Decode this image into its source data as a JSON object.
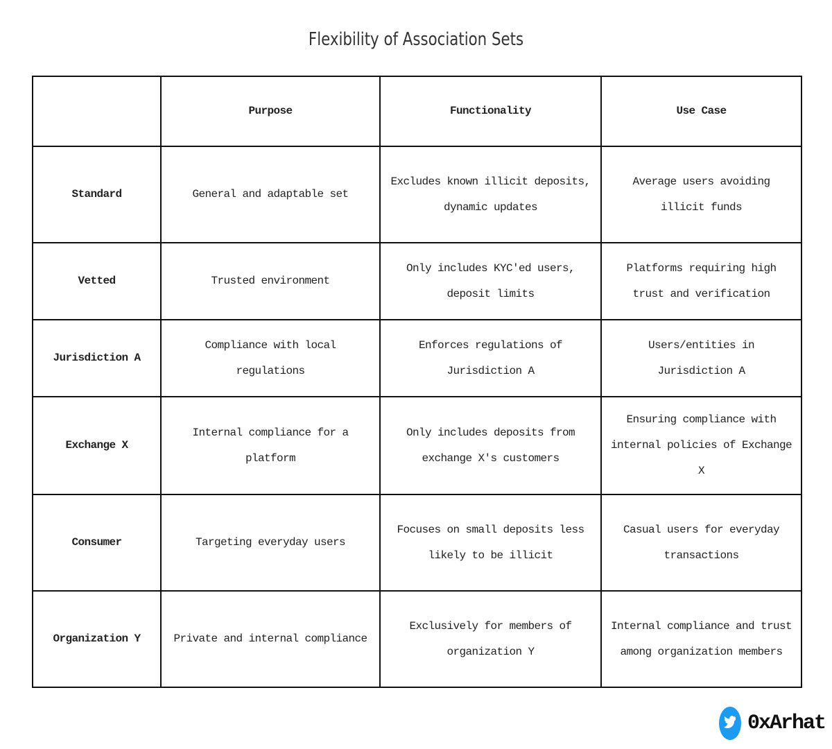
{
  "header": {
    "title": "Flexibility of Association Sets"
  },
  "table": {
    "columns": [
      "Purpose",
      "Functionality",
      "Use Case"
    ],
    "rows": [
      [
        "Standard",
        "General and adaptable set",
        "Excludes known illicit deposits, dynamic updates",
        "Average users avoiding illicit funds"
      ],
      [
        "Vetted",
        "Trusted environment",
        "Only includes KYC'ed users, deposit limits",
        "Platforms requiring high trust and verification"
      ],
      [
        "Jurisdiction A",
        "Compliance with local regulations",
        "Enforces regulations of Jurisdiction A",
        "Users/entities in Jurisdiction A"
      ],
      [
        "Exchange X",
        "Internal compliance for a platform",
        "Only includes deposits from exchange X's customers",
        "Ensuring compliance with internal policies of Exchange X"
      ],
      [
        "Consumer",
        "Targeting everyday users",
        "Focuses on small deposits less likely to be illicit",
        "Casual users for everyday transactions"
      ],
      [
        "Organization Y",
        "Private and internal compliance",
        "Exclusively for members of organization Y",
        "Internal compliance and trust among organization members"
      ]
    ]
  },
  "footer": {
    "handle": "0xArhat"
  }
}
